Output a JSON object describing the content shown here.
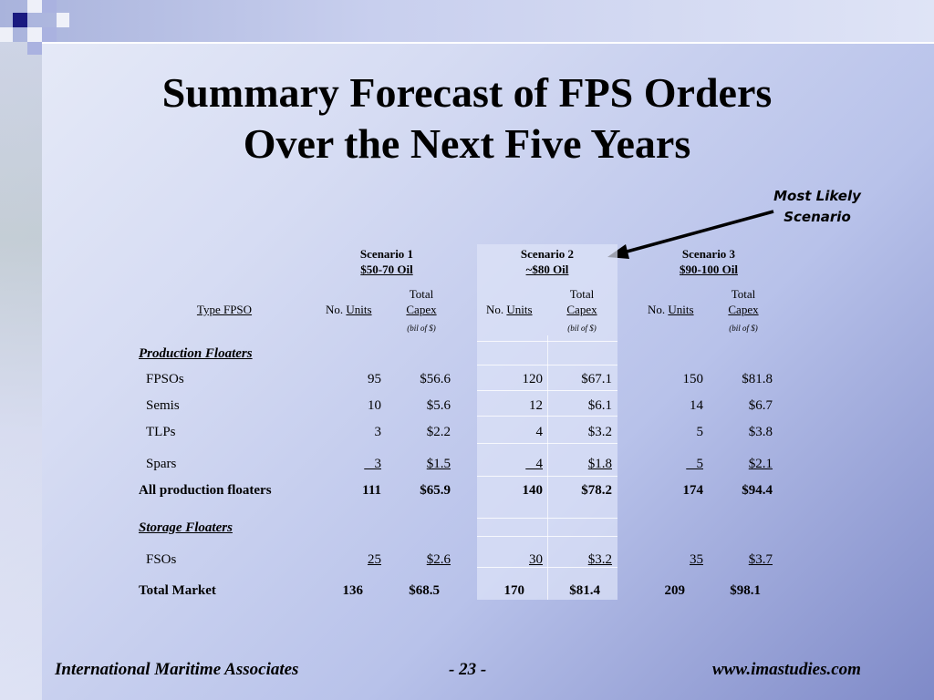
{
  "slide": {
    "title_line1": "Summary Forecast of FPS Orders",
    "title_line2": "Over the Next Five Years",
    "callout_line1": "Most Likely",
    "callout_line2": "Scenario"
  },
  "table": {
    "type_header": "Type FPSO",
    "no_label": "No.",
    "units_label": "Units",
    "total_label": "Total",
    "capex_label": "Capex",
    "unit_note": "(bil of $)",
    "scenarios": [
      {
        "name": "Scenario 1",
        "range": "$50-70 Oil"
      },
      {
        "name": "Scenario 2",
        "range": "~$80 Oil"
      },
      {
        "name": "Scenario 3",
        "range": "$90-100 Oil"
      }
    ],
    "production_heading": "Production Floaters",
    "storage_heading": "Storage Floaters",
    "rows": [
      {
        "label": "FPSOs",
        "values": [
          "95",
          "$56.6",
          "120",
          "$67.1",
          "150",
          "$81.8"
        ]
      },
      {
        "label": "Semis",
        "values": [
          "10",
          "$5.6",
          "12",
          "$6.1",
          "14",
          "$6.7"
        ]
      },
      {
        "label": "TLPs",
        "values": [
          "3",
          "$2.2",
          "4",
          "$3.2",
          "5",
          "$3.8"
        ]
      },
      {
        "label": "Spars",
        "values": [
          "3",
          "$1.5",
          "4",
          "$1.8",
          "5",
          "$2.1"
        ]
      },
      {
        "label": "All production floaters",
        "values": [
          "111",
          "$65.9",
          "140",
          "$78.2",
          "174",
          "$94.4"
        ]
      },
      {
        "label": "FSOs",
        "values": [
          "25",
          "$2.6",
          "30",
          "$3.2",
          "35",
          "$3.7"
        ]
      },
      {
        "label": "Total Market",
        "values": [
          "136",
          "$68.5",
          "170",
          "$81.4",
          "209",
          "$98.1"
        ]
      }
    ]
  },
  "footer": {
    "company": "International Maritime Associates",
    "page": "- 23 -",
    "website": "www.imastudies.com"
  },
  "colors": {
    "accent_dark": "#1a1a80",
    "accent_light": "#aab2e0"
  }
}
